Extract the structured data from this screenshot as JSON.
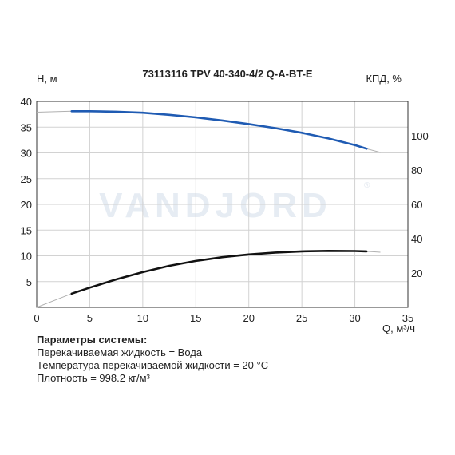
{
  "chart_data": {
    "type": "line",
    "title": "73113116 TPV 40-340-4/2 Q-A-BT-E",
    "xlabel": "Q, м³/ч",
    "ylabel_left": "H, м",
    "ylabel_right": "КПД, %",
    "watermark": "VANDJORD",
    "watermark_mark": "®",
    "xlim": [
      0,
      35
    ],
    "ylim_left": [
      0,
      40
    ],
    "ylim_right": [
      0,
      120
    ],
    "x_ticks": [
      0,
      5,
      10,
      15,
      20,
      25,
      30,
      35
    ],
    "y_ticks_left": [
      5,
      10,
      15,
      20,
      25,
      30,
      35,
      40
    ],
    "y_ticks_right": [
      20,
      40,
      60,
      80,
      100
    ],
    "grid": true,
    "series": [
      {
        "axis": "left",
        "color": "#1f5bb3",
        "points": [
          [
            3.3,
            38.1
          ],
          [
            5,
            38.1
          ],
          [
            7.5,
            38.0
          ],
          [
            10,
            37.8
          ],
          [
            12.5,
            37.4
          ],
          [
            15,
            36.9
          ],
          [
            17.5,
            36.3
          ],
          [
            20,
            35.6
          ],
          [
            22.5,
            34.8
          ],
          [
            25,
            33.9
          ],
          [
            27.5,
            32.8
          ],
          [
            30,
            31.5
          ],
          [
            31.1,
            30.8
          ]
        ],
        "extension": [
          [
            0,
            37.9
          ],
          [
            3.3,
            38.1
          ]
        ],
        "extension_end": [
          [
            31.1,
            30.8
          ],
          [
            32.4,
            30.1
          ]
        ]
      },
      {
        "axis": "right",
        "color": "#111111",
        "points": [
          [
            3.3,
            8.0
          ],
          [
            5,
            11.5
          ],
          [
            7.5,
            16.3
          ],
          [
            10,
            20.5
          ],
          [
            12.5,
            24.2
          ],
          [
            15,
            27.0
          ],
          [
            17.5,
            29.2
          ],
          [
            20,
            30.8
          ],
          [
            22.5,
            31.9
          ],
          [
            25,
            32.6
          ],
          [
            27.5,
            32.9
          ],
          [
            30,
            32.8
          ],
          [
            31.1,
            32.6
          ]
        ],
        "extension": [
          [
            0,
            0
          ],
          [
            3.3,
            8.0
          ]
        ],
        "extension_end": [
          [
            31.1,
            32.6
          ],
          [
            32.4,
            32.1
          ]
        ]
      }
    ]
  },
  "params": {
    "heading": "Параметры системы:",
    "liquid": "Перекачиваемая жидкость = Вода",
    "temperature": "Температура перекачиваемой жидкости = 20 °C",
    "density": "Плотность = 998.2 кг/м³"
  },
  "colors": {
    "grid": "#d2d2d2",
    "axis": "#333333",
    "extension": "#b0b0b0"
  }
}
